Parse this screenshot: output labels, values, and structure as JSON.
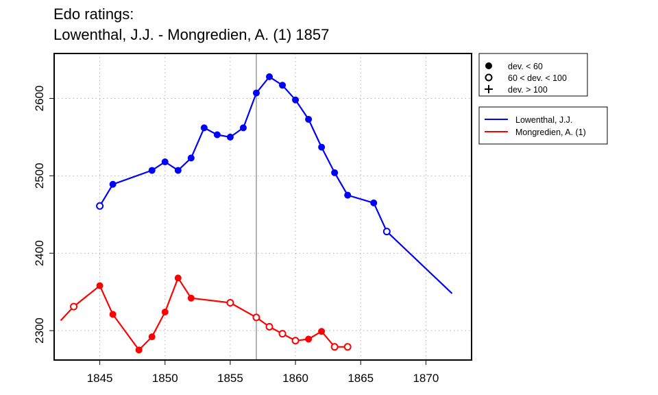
{
  "chart_data": {
    "type": "line",
    "title_line1": "Edo ratings:",
    "title_line2": "Lowenthal, J.J. - Mongredien, A. (1) 1857",
    "xlabel": "",
    "ylabel": "",
    "xlim": [
      1841.5,
      1873.5
    ],
    "ylim": [
      2262,
      2658
    ],
    "xticks": [
      1845,
      1850,
      1855,
      1860,
      1865,
      1870
    ],
    "yticks": [
      2300,
      2400,
      2500,
      2600
    ],
    "grid": true,
    "vline_x": 1857,
    "series": [
      {
        "name": "Lowenthal, J.J.",
        "color": "#0000ff",
        "points": [
          {
            "x": 1845,
            "y": 2461,
            "marker": "open"
          },
          {
            "x": 1846,
            "y": 2489,
            "marker": "filled"
          },
          {
            "x": 1849,
            "y": 2507,
            "marker": "filled"
          },
          {
            "x": 1850,
            "y": 2518,
            "marker": "filled"
          },
          {
            "x": 1851,
            "y": 2507,
            "marker": "filled"
          },
          {
            "x": 1852,
            "y": 2523,
            "marker": "filled"
          },
          {
            "x": 1853,
            "y": 2562,
            "marker": "filled"
          },
          {
            "x": 1854,
            "y": 2553,
            "marker": "filled"
          },
          {
            "x": 1855,
            "y": 2550,
            "marker": "filled"
          },
          {
            "x": 1856,
            "y": 2562,
            "marker": "filled"
          },
          {
            "x": 1857,
            "y": 2607,
            "marker": "filled"
          },
          {
            "x": 1858,
            "y": 2628,
            "marker": "filled"
          },
          {
            "x": 1859,
            "y": 2617,
            "marker": "filled"
          },
          {
            "x": 1860,
            "y": 2598,
            "marker": "filled"
          },
          {
            "x": 1861,
            "y": 2573,
            "marker": "filled"
          },
          {
            "x": 1862,
            "y": 2537,
            "marker": "filled"
          },
          {
            "x": 1863,
            "y": 2504,
            "marker": "filled"
          },
          {
            "x": 1864,
            "y": 2475,
            "marker": "filled"
          },
          {
            "x": 1866,
            "y": 2465,
            "marker": "filled"
          },
          {
            "x": 1867,
            "y": 2428,
            "marker": "open"
          },
          {
            "x": 1872,
            "y": 2348,
            "marker": "none"
          }
        ]
      },
      {
        "name": "Mongredien, A. (1)",
        "color": "#ff0000",
        "points": [
          {
            "x": 1842,
            "y": 2313,
            "marker": "none"
          },
          {
            "x": 1843,
            "y": 2331,
            "marker": "open"
          },
          {
            "x": 1845,
            "y": 2358,
            "marker": "filled"
          },
          {
            "x": 1846,
            "y": 2321,
            "marker": "filled"
          },
          {
            "x": 1848,
            "y": 2275,
            "marker": "filled"
          },
          {
            "x": 1849,
            "y": 2292,
            "marker": "filled"
          },
          {
            "x": 1850,
            "y": 2324,
            "marker": "filled"
          },
          {
            "x": 1851,
            "y": 2368,
            "marker": "filled"
          },
          {
            "x": 1852,
            "y": 2342,
            "marker": "filled"
          },
          {
            "x": 1855,
            "y": 2336,
            "marker": "open"
          },
          {
            "x": 1857,
            "y": 2317,
            "marker": "open"
          },
          {
            "x": 1858,
            "y": 2305,
            "marker": "open"
          },
          {
            "x": 1859,
            "y": 2296,
            "marker": "open"
          },
          {
            "x": 1860,
            "y": 2287,
            "marker": "open"
          },
          {
            "x": 1861,
            "y": 2289,
            "marker": "filled"
          },
          {
            "x": 1862,
            "y": 2299,
            "marker": "filled"
          },
          {
            "x": 1863,
            "y": 2279,
            "marker": "open"
          },
          {
            "x": 1864,
            "y": 2279,
            "marker": "open"
          }
        ]
      }
    ],
    "marker_legend": [
      {
        "symbol": "filled",
        "label": "dev. < 60"
      },
      {
        "symbol": "open",
        "label": "60 < dev. < 100"
      },
      {
        "symbol": "plus",
        "label": "dev. > 100"
      }
    ]
  }
}
